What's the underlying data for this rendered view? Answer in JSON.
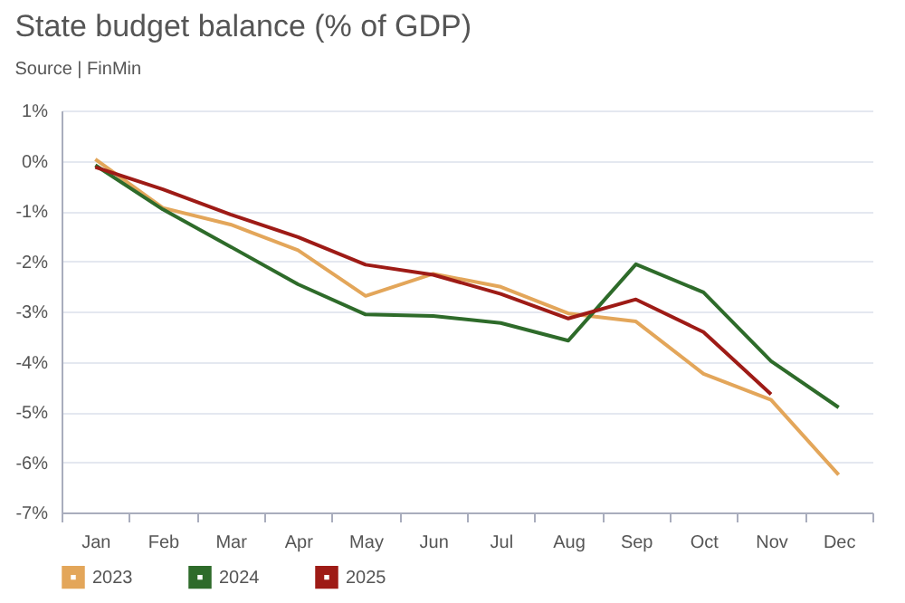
{
  "chart_data": {
    "type": "line",
    "title": "State budget balance (% of GDP)",
    "subtitle": "Source | FinMin",
    "categories": [
      "Jan",
      "Feb",
      "Mar",
      "Apr",
      "May",
      "Jun",
      "Jul",
      "Aug",
      "Sep",
      "Oct",
      "Nov",
      "Dec"
    ],
    "series": [
      {
        "name": "2023",
        "color": "#e3a65a",
        "values": [
          0.03,
          -0.94,
          -1.27,
          -1.78,
          -2.69,
          -2.25,
          -2.51,
          -3.04,
          -3.2,
          -4.24,
          -4.76,
          -6.25
        ]
      },
      {
        "name": "2024",
        "color": "#2e6b2a",
        "values": [
          -0.09,
          -0.97,
          -1.71,
          -2.46,
          -3.06,
          -3.09,
          -3.23,
          -3.58,
          -2.06,
          -2.62,
          -3.99,
          -4.91
        ]
      },
      {
        "name": "2025",
        "color": "#9e1b16",
        "values": [
          -0.13,
          -0.57,
          -1.07,
          -1.52,
          -2.07,
          -2.27,
          -2.65,
          -3.14,
          -2.76,
          -3.41,
          -4.65,
          null
        ]
      }
    ],
    "ylim": [
      -7,
      1
    ],
    "yticks": [
      {
        "value": -7,
        "label": "-7%"
      },
      {
        "value": -6,
        "label": "-6%"
      },
      {
        "value": -5,
        "label": "-5%"
      },
      {
        "value": -4,
        "label": "-4%"
      },
      {
        "value": -3,
        "label": "-3%"
      },
      {
        "value": -2,
        "label": "-2%"
      },
      {
        "value": -1,
        "label": "-1%"
      },
      {
        "value": 0,
        "label": "0%"
      },
      {
        "value": 1,
        "label": "1%"
      }
    ],
    "grid": "y",
    "legend": "bottom",
    "line_style": "solid"
  }
}
